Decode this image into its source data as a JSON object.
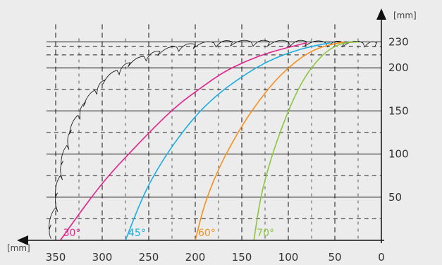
{
  "chart_data": {
    "type": "line",
    "x_unit": "[mm]",
    "y_unit": "[mm]",
    "x_ticks": [
      "350",
      "300",
      "250",
      "200",
      "150",
      "100",
      "50",
      "0"
    ],
    "y_ticks": [
      "50",
      "100",
      "150",
      "200",
      "230"
    ],
    "xlim": [
      0,
      360
    ],
    "ylim": [
      0,
      230
    ],
    "x_axis_direction": "decreasing-left-to-right",
    "grid": true,
    "series": [
      {
        "name": "30°",
        "color": "#e0248c",
        "points": [
          [
            345,
            0
          ],
          [
            320,
            38
          ],
          [
            295,
            73
          ],
          [
            270,
            102
          ],
          [
            245,
            130
          ],
          [
            220,
            156
          ],
          [
            195,
            176
          ],
          [
            170,
            195
          ],
          [
            145,
            208
          ],
          [
            120,
            218
          ],
          [
            95,
            225
          ],
          [
            80,
            229
          ]
        ]
      },
      {
        "name": "45°",
        "color": "#1aaee0",
        "points": [
          [
            275,
            0
          ],
          [
            255,
            55
          ],
          [
            235,
            93
          ],
          [
            215,
            124
          ],
          [
            195,
            150
          ],
          [
            175,
            170
          ],
          [
            155,
            186
          ],
          [
            135,
            200
          ],
          [
            115,
            211
          ],
          [
            95,
            219
          ],
          [
            75,
            225
          ],
          [
            55,
            229
          ]
        ]
      },
      {
        "name": "60°",
        "color": "#f4901e",
        "points": [
          [
            200,
            0
          ],
          [
            190,
            43
          ],
          [
            175,
            83
          ],
          [
            160,
            114
          ],
          [
            145,
            141
          ],
          [
            130,
            164
          ],
          [
            115,
            184
          ],
          [
            100,
            200
          ],
          [
            85,
            213
          ],
          [
            70,
            222
          ],
          [
            55,
            227
          ],
          [
            40,
            230
          ]
        ]
      },
      {
        "name": "70°",
        "color": "#8cc63f",
        "points": [
          [
            137,
            0
          ],
          [
            130,
            50
          ],
          [
            120,
            90
          ],
          [
            110,
            122
          ],
          [
            100,
            150
          ],
          [
            90,
            174
          ],
          [
            80,
            193
          ],
          [
            70,
            207
          ],
          [
            60,
            218
          ],
          [
            50,
            225
          ],
          [
            40,
            229
          ],
          [
            25,
            230
          ]
        ]
      }
    ],
    "sawtooth_outline": [
      [
        355,
        2
      ],
      [
        355,
        18
      ],
      [
        350,
        38
      ],
      [
        348,
        55
      ],
      [
        345,
        75
      ],
      [
        342,
        92
      ],
      [
        338,
        110
      ],
      [
        333,
        128
      ],
      [
        326,
        145
      ],
      [
        318,
        160
      ],
      [
        308,
        174
      ],
      [
        297,
        186
      ],
      [
        284,
        197
      ],
      [
        270,
        206
      ],
      [
        255,
        213
      ],
      [
        238,
        219
      ],
      [
        220,
        224
      ],
      [
        200,
        227
      ],
      [
        180,
        229
      ],
      [
        160,
        230
      ],
      [
        140,
        230
      ],
      [
        120,
        230
      ],
      [
        100,
        230
      ],
      [
        80,
        230
      ],
      [
        60,
        229
      ],
      [
        40,
        229
      ],
      [
        20,
        229
      ],
      [
        5,
        229
      ]
    ]
  }
}
